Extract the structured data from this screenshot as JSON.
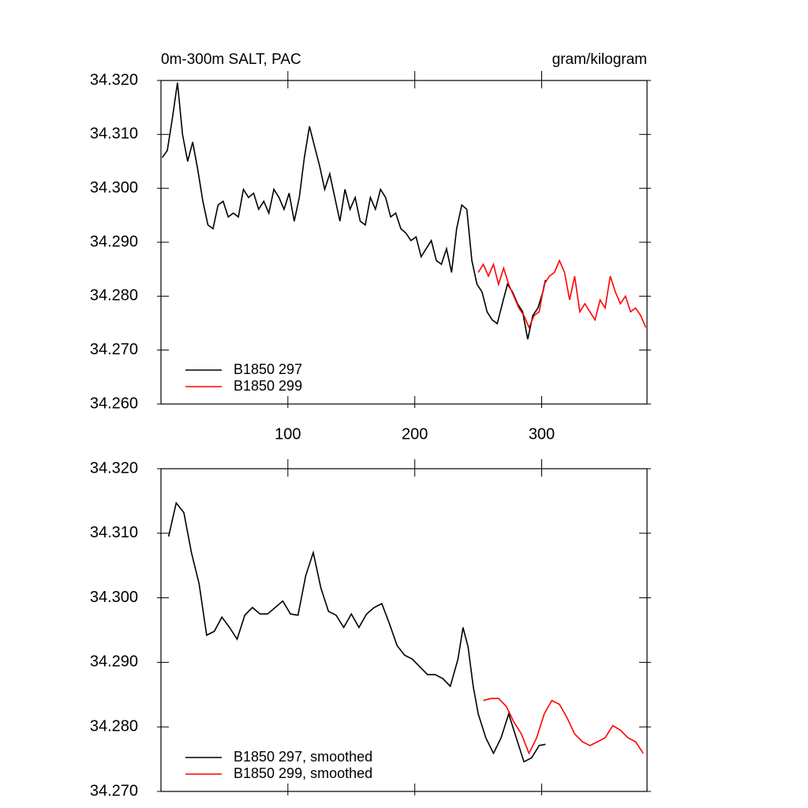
{
  "chart_data": [
    {
      "type": "line",
      "title": "0m-300m SALT, PAC",
      "units": "gram/kilogram",
      "xlim": [
        0,
        383
      ],
      "xticks": [
        100,
        200,
        300
      ],
      "show_xtick_labels": true,
      "ylim": [
        34.26,
        34.32
      ],
      "yticks": [
        {
          "value": 34.26,
          "label": "34.260"
        },
        {
          "value": 34.27,
          "label": "34.270"
        },
        {
          "value": 34.28,
          "label": "34.280"
        },
        {
          "value": 34.29,
          "label": "34.290"
        },
        {
          "value": 34.3,
          "label": "34.300"
        },
        {
          "value": 34.31,
          "label": "34.310"
        },
        {
          "value": 34.32,
          "label": "34.320"
        }
      ],
      "series": [
        {
          "name": "B1850 297",
          "color": "#000000",
          "x": [
            1,
            5,
            9,
            13,
            17,
            21,
            25,
            29,
            33,
            37,
            41,
            45,
            49,
            53,
            57,
            61,
            65,
            69,
            73,
            77,
            81,
            85,
            89,
            93,
            97,
            101,
            105,
            109,
            113,
            117,
            121,
            125,
            129,
            133,
            137,
            141,
            145,
            149,
            153,
            157,
            161,
            165,
            169,
            173,
            177,
            181,
            185,
            189,
            193,
            197,
            201,
            205,
            209,
            213,
            217,
            221,
            225,
            229,
            233,
            237,
            241,
            245,
            249,
            253,
            257,
            261,
            265,
            269,
            273,
            277,
            281,
            285,
            289,
            293,
            297,
            301,
            303
          ],
          "values": [
            34.3057,
            34.307,
            34.313,
            34.3196,
            34.31,
            34.305,
            34.3086,
            34.3035,
            34.2976,
            34.2932,
            34.2925,
            34.2969,
            34.2976,
            34.2947,
            34.2954,
            34.2947,
            34.2998,
            34.2983,
            34.2991,
            34.2961,
            34.2976,
            34.2954,
            34.2998,
            34.2983,
            34.2961,
            34.2991,
            34.2939,
            34.2983,
            34.3057,
            34.3115,
            34.3078,
            34.3042,
            34.2998,
            34.3027,
            34.2983,
            34.2939,
            34.2998,
            34.2961,
            34.2983,
            34.2939,
            34.2932,
            34.2983,
            34.2961,
            34.2998,
            34.2983,
            34.2947,
            34.2954,
            34.2925,
            34.2917,
            34.2903,
            34.291,
            34.2873,
            34.2888,
            34.2903,
            34.2866,
            34.2859,
            34.2888,
            34.2844,
            34.2925,
            34.2969,
            34.2961,
            34.2866,
            34.2822,
            34.2808,
            34.2771,
            34.2756,
            34.2749,
            34.2786,
            34.2822,
            34.2808,
            34.2786,
            34.2771,
            34.272,
            34.2764,
            34.2778,
            34.2808,
            34.283
          ]
        },
        {
          "name": "B1850 299",
          "color": "#ff0000",
          "x": [
            250,
            254,
            258,
            262,
            266,
            270,
            274,
            278,
            282,
            286,
            290,
            294,
            298,
            302,
            306,
            310,
            314,
            318,
            322,
            326,
            330,
            334,
            338,
            342,
            346,
            350,
            354,
            358,
            362,
            366,
            370,
            374,
            378,
            382
          ],
          "values": [
            34.2844,
            34.2859,
            34.2837,
            34.2859,
            34.2822,
            34.2852,
            34.2822,
            34.28,
            34.2778,
            34.2764,
            34.2742,
            34.2764,
            34.2771,
            34.2822,
            34.2837,
            34.2844,
            34.2866,
            34.2844,
            34.2793,
            34.2837,
            34.2771,
            34.2786,
            34.2771,
            34.2756,
            34.2793,
            34.2778,
            34.2837,
            34.2808,
            34.2786,
            34.28,
            34.2771,
            34.2778,
            34.2764,
            34.2742
          ]
        }
      ]
    },
    {
      "type": "line",
      "xlim": [
        0,
        383
      ],
      "xticks": [
        100,
        200,
        300
      ],
      "show_xtick_labels": false,
      "ylim": [
        34.27,
        34.32
      ],
      "yticks": [
        {
          "value": 34.27,
          "label": "34.270"
        },
        {
          "value": 34.28,
          "label": "34.280"
        },
        {
          "value": 34.29,
          "label": "34.290"
        },
        {
          "value": 34.3,
          "label": "34.300"
        },
        {
          "value": 34.31,
          "label": "34.310"
        },
        {
          "value": 34.32,
          "label": "34.320"
        }
      ],
      "series": [
        {
          "name": "B1850 297, smoothed",
          "color": "#000000",
          "x": [
            6,
            12,
            18,
            24,
            30,
            36,
            42,
            48,
            54,
            60,
            66,
            72,
            78,
            84,
            90,
            96,
            102,
            108,
            114,
            120,
            126,
            132,
            138,
            144,
            150,
            156,
            162,
            168,
            174,
            180,
            186,
            192,
            198,
            204,
            210,
            216,
            222,
            228,
            234,
            238,
            242,
            246,
            250,
            256,
            262,
            268,
            274,
            280,
            286,
            292,
            298,
            303
          ],
          "values": [
            34.3095,
            34.3147,
            34.3132,
            34.307,
            34.3022,
            34.2942,
            34.2948,
            34.297,
            34.2954,
            34.2936,
            34.2973,
            34.2985,
            34.2975,
            34.2975,
            34.2985,
            34.2995,
            34.2975,
            34.2973,
            34.3034,
            34.307,
            34.3015,
            34.2979,
            34.2973,
            34.2954,
            34.2975,
            34.2954,
            34.2975,
            34.2985,
            34.2991,
            34.296,
            34.2926,
            34.2911,
            34.2905,
            34.2893,
            34.2881,
            34.2881,
            34.2875,
            34.2863,
            34.2905,
            34.2954,
            34.2924,
            34.2863,
            34.282,
            34.2783,
            34.2759,
            34.2783,
            34.282,
            34.2783,
            34.2746,
            34.2752,
            34.2771,
            34.2773
          ]
        },
        {
          "name": "B1850 299, smoothed",
          "color": "#ff0000",
          "x": [
            254,
            260,
            266,
            272,
            278,
            284,
            290,
            296,
            302,
            308,
            314,
            320,
            326,
            332,
            338,
            344,
            350,
            356,
            362,
            368,
            374,
            380
          ],
          "values": [
            34.2841,
            34.2844,
            34.2844,
            34.2832,
            34.2808,
            34.2789,
            34.2759,
            34.2783,
            34.282,
            34.2841,
            34.2835,
            34.2814,
            34.2789,
            34.2777,
            34.2771,
            34.2777,
            34.2783,
            34.2802,
            34.2795,
            34.2783,
            34.2777,
            34.2759
          ]
        }
      ]
    }
  ]
}
